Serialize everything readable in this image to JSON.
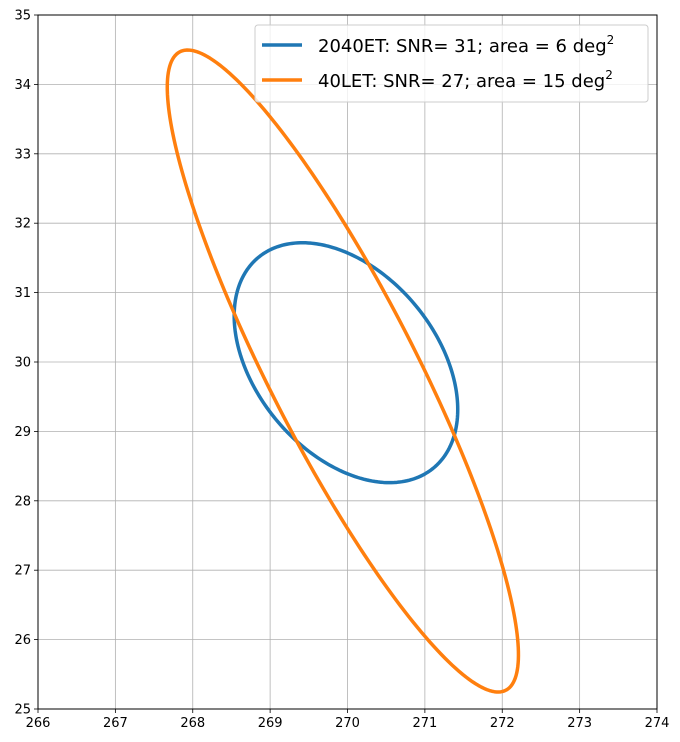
{
  "chart_data": {
    "type": "line",
    "title": "",
    "xlabel": "",
    "ylabel": "",
    "xlim": [
      266,
      274
    ],
    "ylim": [
      25,
      35
    ],
    "x_ticks": [
      266,
      267,
      268,
      269,
      270,
      271,
      272,
      273,
      274
    ],
    "y_ticks": [
      25,
      26,
      27,
      28,
      29,
      30,
      31,
      32,
      33,
      34,
      35
    ],
    "grid": true,
    "legend_position": "top-right",
    "series": [
      {
        "name": "2040ET: SNR= 31; area = 6 deg",
        "name_superscript": "2",
        "color": "#1f77b4",
        "shape": "ellipse",
        "center": [
          269.98,
          29.99
        ],
        "semi_axis_major": 1.9,
        "semi_axis_minor": 1.21,
        "rotation_deg_ccw_from_x": -57.4
      },
      {
        "name": "40LET: SNR= 27; area = 15 deg",
        "name_superscript": "2",
        "color": "#ff7f0e",
        "shape": "ellipse",
        "center": [
          269.94,
          29.87
        ],
        "semi_axis_major": 5.06,
        "semi_axis_minor": 0.97,
        "rotation_deg_ccw_from_x": -65.6
      }
    ]
  }
}
